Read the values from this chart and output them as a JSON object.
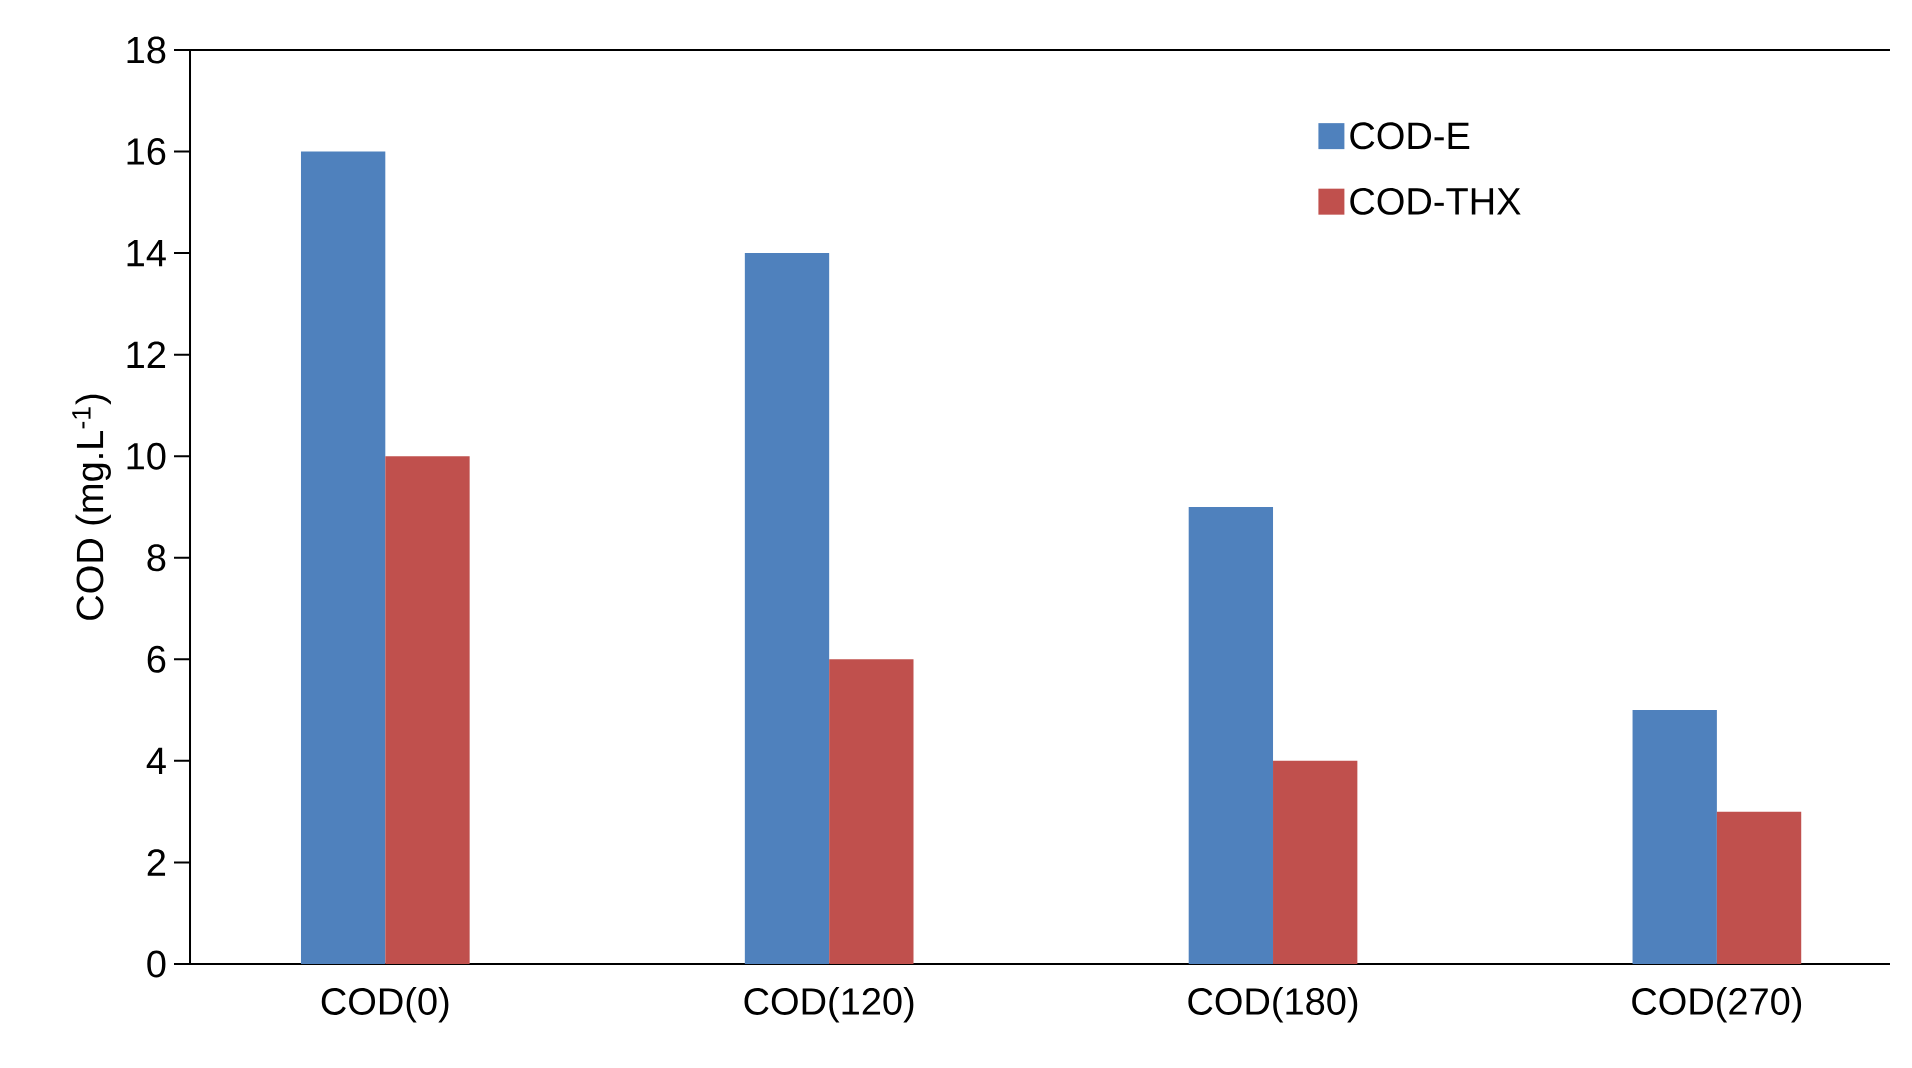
{
  "chart_data": {
    "type": "bar",
    "ylabel": "COD (mg.L$^{-1}$)",
    "categories": [
      "COD(0)",
      "COD(120)",
      "COD(180)",
      "COD(270)"
    ],
    "series": [
      {
        "name": "COD-E",
        "color": "#4f81bd",
        "values": [
          16,
          14,
          9,
          5
        ]
      },
      {
        "name": "COD-THX",
        "color": "#c0504d",
        "values": [
          10,
          6,
          4,
          3
        ]
      }
    ],
    "ylim": [
      0,
      18
    ],
    "yticks": [
      0,
      2,
      4,
      6,
      8,
      10,
      12,
      14,
      16,
      18
    ],
    "grid": false,
    "legend": "top right"
  }
}
